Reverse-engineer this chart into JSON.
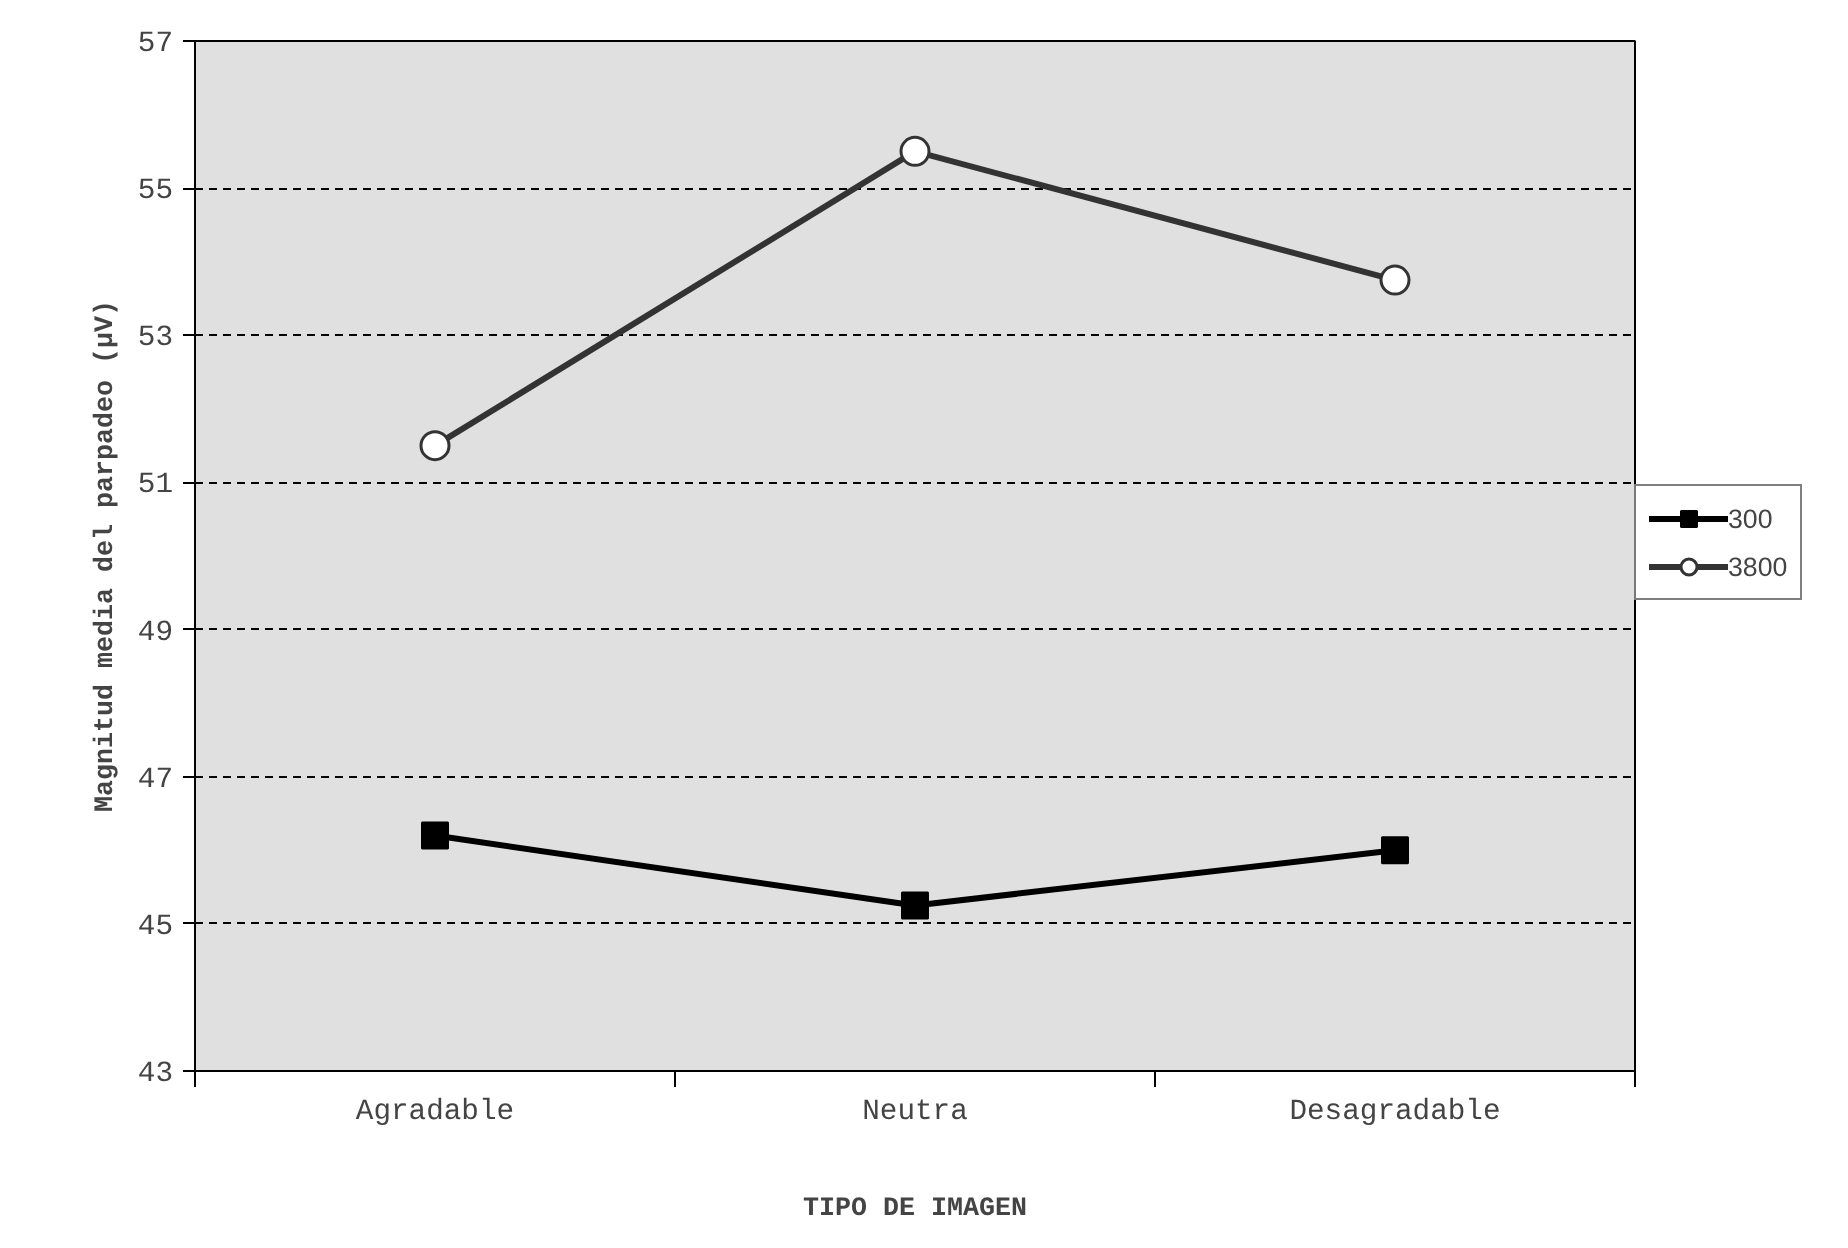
{
  "chart_data": {
    "type": "line",
    "xlabel": "TIPO DE IMAGEN",
    "ylabel": "Magnitud media del parpadeo (µV)",
    "categories": [
      "Agradable",
      "Neutra",
      "Desagradable"
    ],
    "series": [
      {
        "name": "300",
        "color": "#000000",
        "marker": "square",
        "values": [
          46.2,
          45.25,
          46.0
        ]
      },
      {
        "name": "3800",
        "color": "#333333",
        "marker": "circle",
        "values": [
          51.5,
          55.5,
          53.75
        ]
      }
    ],
    "ylim": [
      43,
      57
    ],
    "yticks": [
      43,
      45,
      47,
      49,
      51,
      53,
      55,
      57
    ],
    "grid": "y",
    "legend": "right"
  }
}
